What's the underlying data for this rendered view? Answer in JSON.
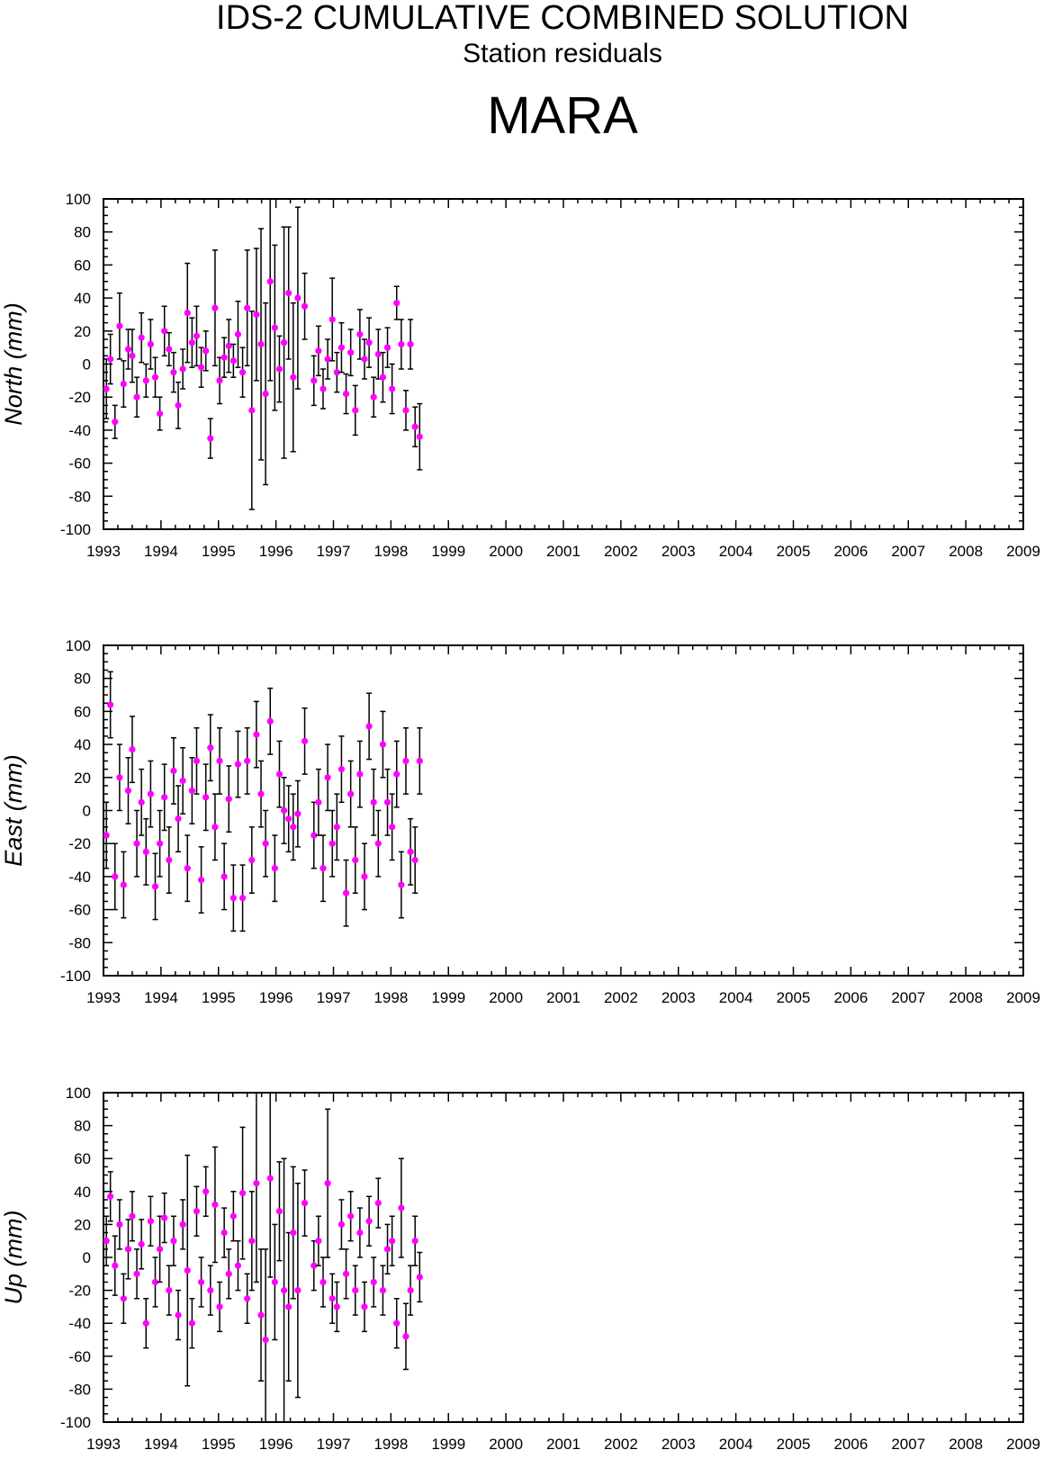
{
  "header": {
    "title": "IDS-2 CUMULATIVE COMBINED SOLUTION",
    "subtitle": "Station residuals",
    "station": "MARA"
  },
  "colors": {
    "marker": "#ff00ff",
    "errorbar": "#000000",
    "axis": "#000000"
  },
  "chart_data": [
    {
      "type": "scatter",
      "ylabel": "North (mm)",
      "xlim": [
        1993,
        2009
      ],
      "ylim": [
        -100,
        100
      ],
      "xticks": [
        1993,
        1994,
        1995,
        1996,
        1997,
        1998,
        1999,
        2000,
        2001,
        2002,
        2003,
        2004,
        2005,
        2006,
        2007,
        2008,
        2009
      ],
      "yticks": [
        -100,
        -80,
        -60,
        -40,
        -20,
        0,
        20,
        40,
        60,
        80,
        100
      ],
      "series": [
        {
          "x": [
            1993.05,
            1993.12,
            1993.2,
            1993.28,
            1993.35,
            1993.43,
            1993.5,
            1993.58,
            1993.66,
            1993.74,
            1993.82,
            1993.9,
            1993.98,
            1994.06,
            1994.14,
            1994.22,
            1994.3,
            1994.38,
            1994.46,
            1994.54,
            1994.62,
            1994.7,
            1994.78,
            1994.86,
            1994.94,
            1995.02,
            1995.1,
            1995.18,
            1995.26,
            1995.34,
            1995.42,
            1995.5,
            1995.58,
            1995.66,
            1995.74,
            1995.82,
            1995.9,
            1995.98,
            1996.06,
            1996.14,
            1996.22,
            1996.3,
            1996.38,
            1996.5,
            1996.66,
            1996.74,
            1996.82,
            1996.9,
            1996.98,
            1997.06,
            1997.14,
            1997.22,
            1997.3,
            1997.38,
            1997.46,
            1997.54,
            1997.62,
            1997.7,
            1997.78,
            1997.86,
            1997.94,
            1998.02,
            1998.1,
            1998.18,
            1998.26,
            1998.34,
            1998.42,
            1998.5
          ],
          "y": [
            -15,
            3,
            -35,
            23,
            -12,
            9,
            5,
            -20,
            16,
            -10,
            12,
            -8,
            -30,
            20,
            9,
            -5,
            -25,
            -3,
            31,
            13,
            17,
            -2,
            8,
            -45,
            34,
            -10,
            4,
            11,
            2,
            18,
            -5,
            34,
            -28,
            30,
            12,
            -18,
            50,
            22,
            -3,
            13,
            43,
            -8,
            40,
            35,
            -10,
            8,
            -15,
            3,
            27,
            -5,
            10,
            -18,
            7,
            -28,
            18,
            3,
            13,
            -20,
            6,
            -8,
            10,
            -15,
            37,
            12,
            -28,
            12,
            -38,
            -44
          ],
          "err": [
            18,
            15,
            10,
            20,
            14,
            12,
            16,
            12,
            15,
            10,
            15,
            12,
            10,
            15,
            10,
            12,
            14,
            12,
            30,
            15,
            18,
            12,
            12,
            12,
            35,
            14,
            12,
            16,
            10,
            20,
            15,
            35,
            60,
            40,
            70,
            55,
            60,
            50,
            20,
            70,
            40,
            45,
            55,
            20,
            15,
            15,
            12,
            12,
            25,
            12,
            15,
            12,
            14,
            15,
            15,
            12,
            15,
            12,
            15,
            15,
            12,
            15,
            10,
            15,
            12,
            15,
            12,
            20
          ]
        }
      ]
    },
    {
      "type": "scatter",
      "ylabel": "East (mm)",
      "xlim": [
        1993,
        2009
      ],
      "ylim": [
        -100,
        100
      ],
      "xticks": [
        1993,
        1994,
        1995,
        1996,
        1997,
        1998,
        1999,
        2000,
        2001,
        2002,
        2003,
        2004,
        2005,
        2006,
        2007,
        2008,
        2009
      ],
      "yticks": [
        -100,
        -80,
        -60,
        -40,
        -20,
        0,
        20,
        40,
        60,
        80,
        100
      ],
      "series": [
        {
          "x": [
            1993.05,
            1993.12,
            1993.2,
            1993.28,
            1993.35,
            1993.43,
            1993.5,
            1993.58,
            1993.66,
            1993.74,
            1993.82,
            1993.9,
            1993.98,
            1994.06,
            1994.14,
            1994.22,
            1994.3,
            1994.38,
            1994.46,
            1994.54,
            1994.62,
            1994.7,
            1994.78,
            1994.86,
            1994.94,
            1995.02,
            1995.1,
            1995.18,
            1995.26,
            1995.34,
            1995.42,
            1995.5,
            1995.58,
            1995.66,
            1995.74,
            1995.82,
            1995.9,
            1995.98,
            1996.06,
            1996.14,
            1996.22,
            1996.3,
            1996.38,
            1996.5,
            1996.66,
            1996.74,
            1996.82,
            1996.9,
            1996.98,
            1997.06,
            1997.14,
            1997.22,
            1997.3,
            1997.38,
            1997.46,
            1997.54,
            1997.62,
            1997.7,
            1997.78,
            1997.86,
            1997.94,
            1998.02,
            1998.1,
            1998.18,
            1998.26,
            1998.34,
            1998.42,
            1998.5
          ],
          "y": [
            -15,
            64,
            -40,
            20,
            -45,
            12,
            37,
            -20,
            5,
            -25,
            10,
            -46,
            -20,
            8,
            -30,
            24,
            -5,
            18,
            -35,
            12,
            30,
            -42,
            8,
            38,
            -10,
            30,
            -40,
            7,
            -53,
            28,
            -53,
            30,
            -30,
            46,
            10,
            -20,
            54,
            -35,
            22,
            0,
            -5,
            -10,
            -2,
            42,
            -15,
            5,
            -35,
            20,
            -20,
            -10,
            25,
            -50,
            10,
            -30,
            22,
            -40,
            51,
            5,
            -20,
            40,
            5,
            -10,
            22,
            -45,
            30,
            -25,
            -30,
            30
          ]
        }
      ]
    },
    {
      "type": "scatter",
      "ylabel": "Up (mm)",
      "xlim": [
        1993,
        2009
      ],
      "ylim": [
        -100,
        100
      ],
      "xticks": [
        1993,
        1994,
        1995,
        1996,
        1997,
        1998,
        1999,
        2000,
        2001,
        2002,
        2003,
        2004,
        2005,
        2006,
        2007,
        2008,
        2009
      ],
      "yticks": [
        -100,
        -80,
        -60,
        -40,
        -20,
        0,
        20,
        40,
        60,
        80,
        100
      ],
      "series": [
        {
          "x": [
            1993.05,
            1993.12,
            1993.2,
            1993.28,
            1993.35,
            1993.43,
            1993.5,
            1993.58,
            1993.66,
            1993.74,
            1993.82,
            1993.9,
            1993.98,
            1994.06,
            1994.14,
            1994.22,
            1994.3,
            1994.38,
            1994.46,
            1994.54,
            1994.62,
            1994.7,
            1994.78,
            1994.86,
            1994.94,
            1995.02,
            1995.1,
            1995.18,
            1995.26,
            1995.34,
            1995.42,
            1995.5,
            1995.58,
            1995.66,
            1995.74,
            1995.82,
            1995.9,
            1995.98,
            1996.06,
            1996.14,
            1996.22,
            1996.3,
            1996.38,
            1996.5,
            1996.66,
            1996.74,
            1996.82,
            1996.9,
            1996.98,
            1997.06,
            1997.14,
            1997.22,
            1997.3,
            1997.38,
            1997.46,
            1997.54,
            1997.62,
            1997.7,
            1997.78,
            1997.86,
            1997.94,
            1998.02,
            1998.1,
            1998.18,
            1998.26,
            1998.34,
            1998.42,
            1998.5
          ],
          "y": [
            10,
            37,
            -5,
            20,
            -25,
            5,
            25,
            -10,
            8,
            -40,
            22,
            -15,
            5,
            24,
            -20,
            10,
            -35,
            20,
            -8,
            -40,
            28,
            -15,
            40,
            -20,
            32,
            -30,
            15,
            -10,
            25,
            -5,
            39,
            -25,
            10,
            45,
            -35,
            -50,
            48,
            -15,
            28,
            -20,
            -30,
            15,
            -20,
            33,
            -5,
            10,
            -15,
            45,
            -25,
            -30,
            20,
            -10,
            25,
            -20,
            15,
            -30,
            22,
            -15,
            33,
            -20,
            5,
            10,
            -40,
            30,
            -48,
            -20,
            10,
            -12
          ],
          "err": [
            15,
            15,
            18,
            15,
            15,
            18,
            15,
            15,
            15,
            15,
            15,
            15,
            20,
            15,
            15,
            15,
            15,
            15,
            70,
            15,
            15,
            15,
            15,
            15,
            35,
            15,
            15,
            15,
            15,
            15,
            40,
            15,
            30,
            60,
            40,
            55,
            60,
            35,
            30,
            80,
            45,
            40,
            65,
            20,
            15,
            15,
            15,
            45,
            15,
            15,
            15,
            15,
            15,
            15,
            15,
            15,
            15,
            15,
            15,
            15,
            15,
            15,
            15,
            30,
            20,
            15,
            15,
            15
          ]
        }
      ]
    }
  ]
}
